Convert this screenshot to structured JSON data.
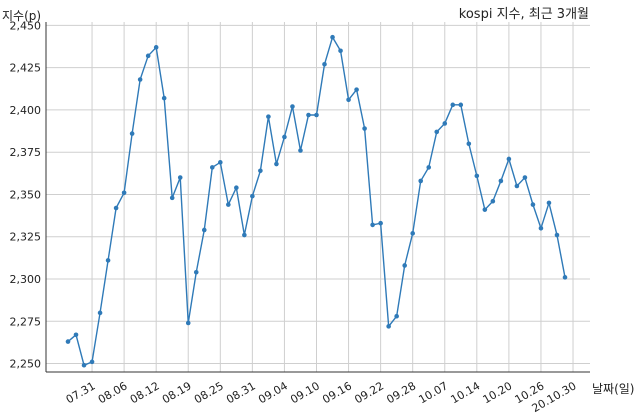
{
  "chart_data": {
    "type": "line",
    "title": "kospi 지수, 최근 3개월",
    "ylabel": "지수(p)",
    "xlabel": "날짜(일)",
    "ylim": [
      2245,
      2452
    ],
    "yticks": [
      2250,
      2275,
      2300,
      2325,
      2350,
      2375,
      2400,
      2425,
      2450
    ],
    "ytick_labels": [
      "2,250",
      "2,275",
      "2,300",
      "2,325",
      "2,350",
      "2,375",
      "2,400",
      "2,425",
      "2,450"
    ],
    "xtick_labels": [
      "07.31",
      "08.06",
      "08.12",
      "08.19",
      "08.25",
      "08.31",
      "09.04",
      "09.10",
      "09.16",
      "09.22",
      "09.28",
      "10.07",
      "10.14",
      "10.20",
      "10.26",
      "20.10.30"
    ],
    "xtick_index": [
      3,
      7,
      11,
      15,
      19,
      23,
      27,
      31,
      35,
      39,
      43,
      47,
      51,
      55,
      59,
      63
    ],
    "grid": true,
    "color": "#2f7ab8",
    "series": [
      {
        "values": [
          2263,
          2267,
          2249,
          2251,
          2280,
          2311,
          2342,
          2351,
          2386,
          2418,
          2432,
          2437,
          2407,
          2348,
          2360,
          2274,
          2304,
          2329,
          2366,
          2369,
          2344,
          2354,
          2326,
          2349,
          2364,
          2396,
          2368,
          2384,
          2402,
          2376,
          2397,
          2397,
          2427,
          2443,
          2435,
          2406,
          2412,
          2389,
          2332,
          2333,
          2272,
          2278,
          2308,
          2327,
          2358,
          2366,
          2387,
          2392,
          2403,
          2403,
          2380,
          2361,
          2341,
          2346,
          2358,
          2371,
          2355,
          2360,
          2344,
          2330,
          2345,
          2326,
          2301
        ]
      }
    ]
  }
}
